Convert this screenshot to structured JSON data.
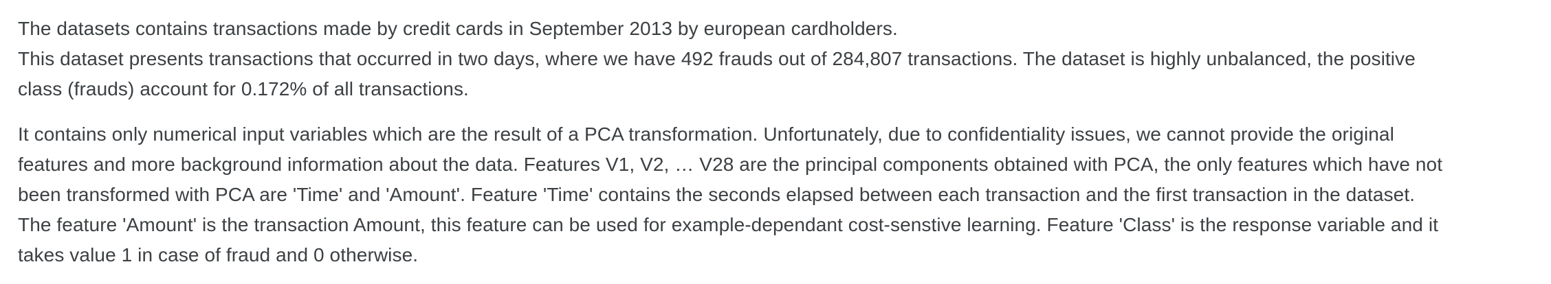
{
  "description": {
    "paragraph_1": [
      "The datasets contains transactions made by credit cards in September 2013 by european cardholders.",
      "This dataset presents transactions that occurred in two days, where we have 492 frauds out of 284,807 transactions. The dataset is highly unbalanced, the positive",
      "class (frauds) account for 0.172% of all transactions."
    ],
    "paragraph_2": [
      "It contains only numerical input variables which are the result of a PCA transformation. Unfortunately, due to confidentiality issues, we cannot provide the original",
      "features and more background information about the data. Features V1, V2, … V28 are the principal components obtained with PCA, the only features which have not",
      "been transformed with PCA are 'Time' and 'Amount'. Feature 'Time' contains the seconds elapsed between each transaction and the first transaction in the dataset.",
      "The feature 'Amount' is the transaction Amount, this feature can be used for example-dependant cost-senstive learning. Feature 'Class' is the response variable and it",
      "takes value 1 in case of fraud and 0 otherwise."
    ]
  }
}
